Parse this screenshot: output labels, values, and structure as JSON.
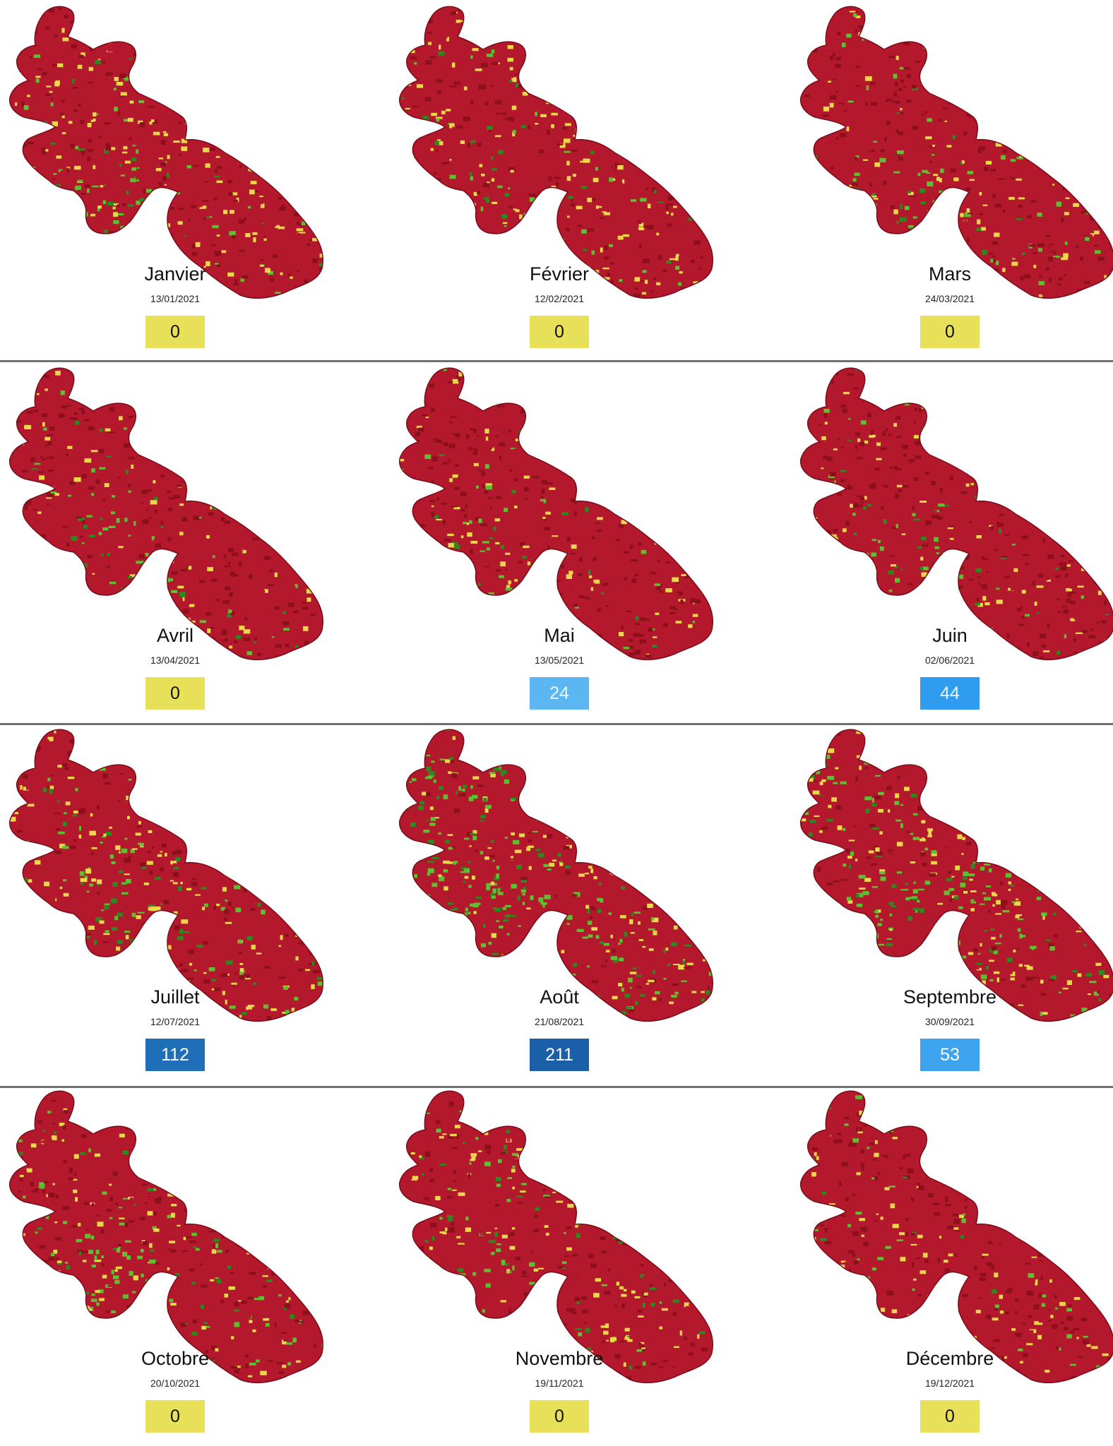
{
  "panels": [
    {
      "month": "Janvier",
      "date": "13/01/2021",
      "value": "0",
      "badge_bg": "#e8e058",
      "badge_fg": "#111111",
      "green": 0.18,
      "yellow": 0.26
    },
    {
      "month": "Février",
      "date": "12/02/2021",
      "value": "0",
      "badge_bg": "#e8e058",
      "badge_fg": "#111111",
      "green": 0.16,
      "yellow": 0.24
    },
    {
      "month": "Mars",
      "date": "24/03/2021",
      "value": "0",
      "badge_bg": "#e8e058",
      "badge_fg": "#111111",
      "green": 0.1,
      "yellow": 0.16
    },
    {
      "month": "Avril",
      "date": "13/04/2021",
      "value": "0",
      "badge_bg": "#e8e058",
      "badge_fg": "#111111",
      "green": 0.1,
      "yellow": 0.16
    },
    {
      "month": "Mai",
      "date": "13/05/2021",
      "value": "24",
      "badge_bg": "#5cb6f2",
      "badge_fg": "#e8f4ff",
      "green": 0.11,
      "yellow": 0.17
    },
    {
      "month": "Juin",
      "date": "02/06/2021",
      "value": "44",
      "badge_bg": "#2f9cf0",
      "badge_fg": "#e8f4ff",
      "green": 0.12,
      "yellow": 0.17
    },
    {
      "month": "Juillet",
      "date": "12/07/2021",
      "value": "112",
      "badge_bg": "#1e6fb8",
      "badge_fg": "#ffffff",
      "green": 0.24,
      "yellow": 0.28
    },
    {
      "month": "Août",
      "date": "21/08/2021",
      "value": "211",
      "badge_bg": "#1a5fa8",
      "badge_fg": "#ffffff",
      "green": 0.52,
      "yellow": 0.26
    },
    {
      "month": "Septembre",
      "date": "30/09/2021",
      "value": "53",
      "badge_bg": "#3fa4f0",
      "badge_fg": "#ffffff",
      "green": 0.3,
      "yellow": 0.3
    },
    {
      "month": "Octobre",
      "date": "20/10/2021",
      "value": "0",
      "badge_bg": "#e8e058",
      "badge_fg": "#111111",
      "green": 0.2,
      "yellow": 0.24
    },
    {
      "month": "Novembre",
      "date": "19/11/2021",
      "value": "0",
      "badge_bg": "#e8e058",
      "badge_fg": "#111111",
      "green": 0.17,
      "yellow": 0.24
    },
    {
      "month": "Décembre",
      "date": "19/12/2021",
      "value": "0",
      "badge_bg": "#e8e058",
      "badge_fg": "#111111",
      "green": 0.12,
      "yellow": 0.18
    }
  ],
  "legend_colors": {
    "red": "#b4182c",
    "dark_red": "#8e0f1c",
    "yellow": "#e8d84a",
    "green": "#5cc030",
    "dark_green": "#2a8a1e"
  }
}
